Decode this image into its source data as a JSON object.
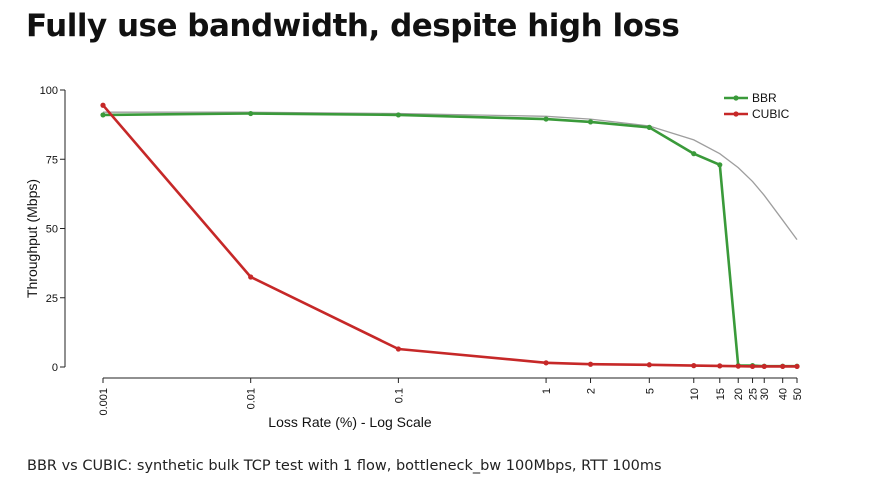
{
  "title": "Fully use bandwidth, despite high loss",
  "caption": "BBR vs CUBIC: synthetic bulk TCP test with 1 flow, bottleneck_bw 100Mbps, RTT 100ms",
  "colors": {
    "bbr": "#3a9a3a",
    "cubic": "#c62828",
    "ideal": "#9e9e9e",
    "axis": "#222222"
  },
  "chart_data": {
    "type": "line",
    "x_scale": "log",
    "xlabel": "Loss Rate (%) - Log Scale",
    "ylabel": "Throughput (Mbps)",
    "xlim": [
      0.001,
      50
    ],
    "ylim": [
      0,
      100
    ],
    "x_ticks": [
      0.001,
      0.01,
      0.1,
      1,
      2,
      5,
      10,
      15,
      20,
      25,
      30,
      40,
      50
    ],
    "x_tick_labels": [
      "0.001",
      "0.01",
      "0.1",
      "1",
      "2",
      "5",
      "10",
      "15",
      "20",
      "25",
      "30",
      "40",
      "50"
    ],
    "y_ticks": [
      0,
      25,
      50,
      75,
      100
    ],
    "y_tick_labels": [
      "0",
      "25",
      "50",
      "75",
      "100"
    ],
    "legend_position": "top-right",
    "series": [
      {
        "name": "BBR",
        "color_key": "bbr",
        "x": [
          0.001,
          0.01,
          0.1,
          1,
          2,
          5,
          10,
          15,
          20,
          25,
          30,
          40,
          50
        ],
        "y": [
          91,
          91.5,
          91,
          89.5,
          88.5,
          86.5,
          77,
          73,
          0.5,
          0.5,
          0.3,
          0.3,
          0.3
        ]
      },
      {
        "name": "CUBIC",
        "color_key": "cubic",
        "x": [
          0.001,
          0.01,
          0.1,
          1,
          2,
          5,
          10,
          15,
          20,
          25,
          30,
          40,
          50
        ],
        "y": [
          94.5,
          32.5,
          6.5,
          1.5,
          1,
          0.8,
          0.5,
          0.4,
          0.3,
          0.2,
          0.2,
          0.2,
          0.2
        ]
      }
    ],
    "reference_curve": {
      "color_key": "ideal",
      "x": [
        0.001,
        0.01,
        0.1,
        1,
        2,
        5,
        10,
        15,
        20,
        25,
        30,
        40,
        50
      ],
      "y": [
        92,
        92,
        91.5,
        90.5,
        89.5,
        87,
        82,
        77,
        72,
        67,
        62,
        53,
        46
      ]
    }
  }
}
